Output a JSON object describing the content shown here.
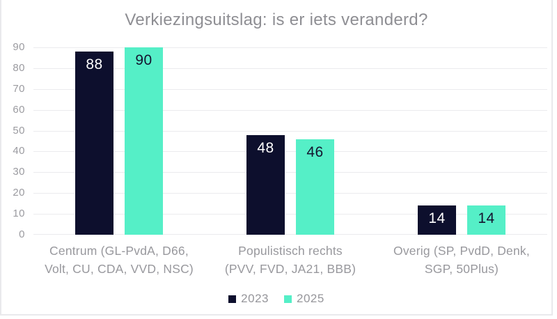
{
  "window": {
    "background": "#ffffff",
    "border_color": "#e9e9ec"
  },
  "chart_data": {
    "type": "bar",
    "title": "Verkiezingsuitslag: is er iets veranderd?",
    "categories": [
      "Centrum (GL-PvdA, D66,\nVolt, CU, CDA, VVD, NSC)",
      "Populistisch rechts\n(PVV, FVD, JA21, BBB)",
      "Overig (SP, PvdD, Denk,\nSGP, 50Plus)"
    ],
    "series": [
      {
        "name": "2023",
        "values": [
          88,
          48,
          14
        ],
        "color": "#0d0f2d",
        "label_color": "#ffffff"
      },
      {
        "name": "2025",
        "values": [
          90,
          46,
          14
        ],
        "color": "#55efc7",
        "label_color": "#14152f"
      }
    ],
    "ylim": [
      0,
      90
    ],
    "yticks": [
      0,
      10,
      20,
      30,
      40,
      50,
      60,
      70,
      80,
      90
    ],
    "grid": true,
    "legend_position": "bottom",
    "data_labels": true,
    "xlabel": "",
    "ylabel": ""
  },
  "colors": {
    "title_text": "#8e8e93",
    "axis_text": "#9b9ba0",
    "category_text": "#98989d",
    "legend_text": "#96969b",
    "gridline": "#ebebee",
    "window_border": "#e9e9ec"
  }
}
